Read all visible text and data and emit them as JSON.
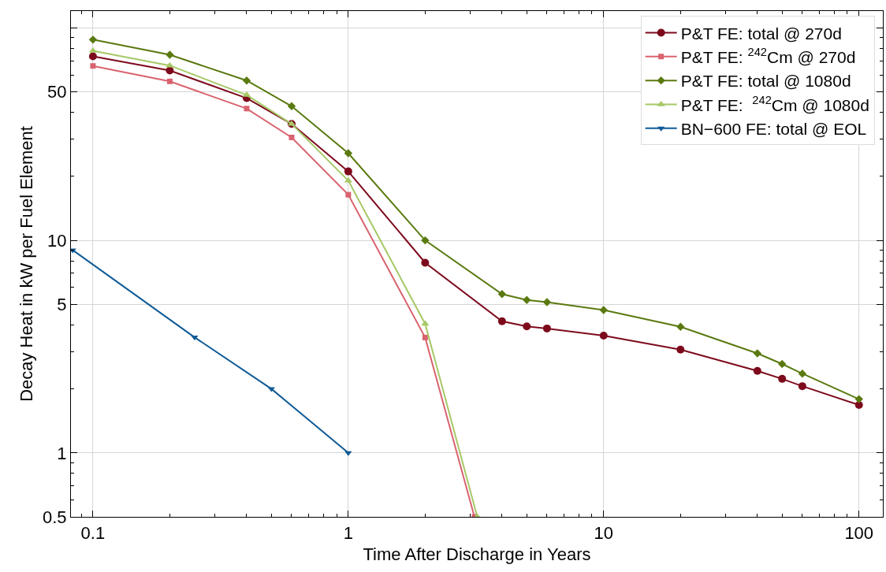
{
  "chart_data": {
    "type": "line",
    "xlabel": "Time After Discharge in Years",
    "ylabel": "Decay Heat in kW per Fuel Element",
    "log": "xy",
    "grid": true,
    "legend": "top right",
    "xlim": [
      0.082,
      124
    ],
    "xticks": [
      {
        "value": 0.1,
        "label": "0.1"
      },
      1,
      10,
      100
    ],
    "ylim": [
      0.5,
      120
    ],
    "yticks": [
      0.5,
      1,
      5,
      10,
      50,
      {
        "value": 100,
        "label": null
      }
    ],
    "series": [
      {
        "name": "P&T FE: total @ 270d",
        "color": "#7d0a1c",
        "marker": "circle",
        "x": [
          0.1,
          0.2,
          0.4,
          0.6,
          1,
          2,
          4,
          5,
          6,
          10,
          20,
          40,
          50,
          60,
          100
        ],
        "values": [
          73.5,
          63,
          46.7,
          35.3,
          21.1,
          7.85,
          4.16,
          3.94,
          3.85,
          3.56,
          3.06,
          2.43,
          2.23,
          2.06,
          1.68
        ]
      },
      {
        "name": "P&T FE: $^{242}$Cm @ 270d",
        "color": "#d9636f",
        "marker": "square",
        "x": [
          0.1,
          0.2,
          0.4,
          0.6,
          1,
          2,
          3.12
        ],
        "values": [
          66.2,
          56,
          41.7,
          30.5,
          16.4,
          3.49,
          0.5
        ]
      },
      {
        "name": "P&T FE: total @ 1080d",
        "color": "#5a7a10",
        "marker": "diamond",
        "x": [
          0.1,
          0.2,
          0.4,
          0.6,
          1,
          2,
          4,
          5,
          6,
          10,
          20,
          40,
          50,
          60,
          100
        ],
        "values": [
          88,
          74.7,
          56.5,
          42.8,
          25.7,
          10.0,
          5.59,
          5.24,
          5.12,
          4.7,
          3.92,
          2.94,
          2.62,
          2.36,
          1.79
        ]
      },
      {
        "name": "P&T FE:  $^{242}$Cm @ 1080d",
        "color": "#a6c866",
        "marker": "triangle",
        "x": [
          0.1,
          0.2,
          0.4,
          0.6,
          1,
          2,
          3.2
        ],
        "values": [
          78,
          66.5,
          48.3,
          35.3,
          19.1,
          4.05,
          0.5
        ]
      },
      {
        "name": "BN−600 FE: total @ EOL",
        "color": "#0f5a96",
        "marker": "triangle-down",
        "x": [
          0.0833,
          0.25,
          0.5,
          1
        ],
        "values": [
          9.0,
          3.5,
          2.0,
          1.0
        ]
      }
    ]
  }
}
